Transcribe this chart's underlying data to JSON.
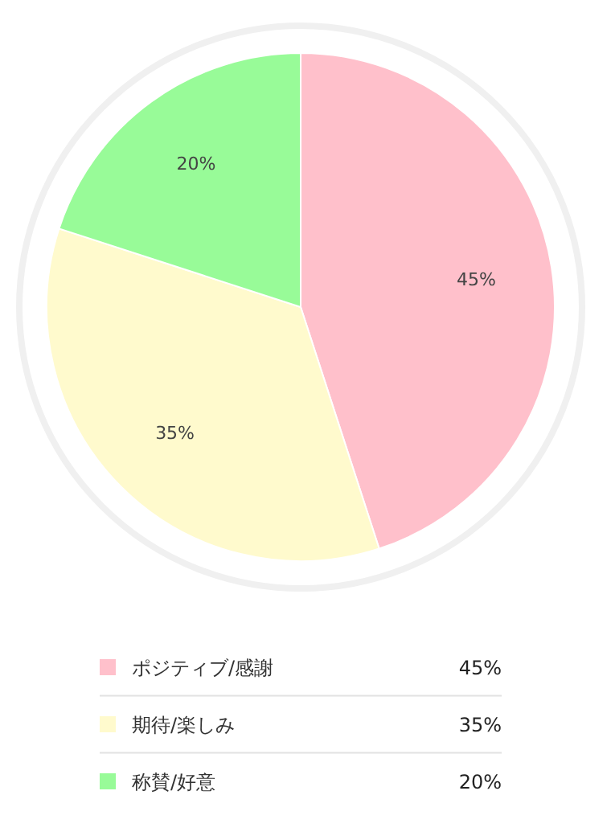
{
  "chart_data": {
    "type": "pie",
    "categories": [
      "ポジティブ/感謝",
      "期待/楽しみ",
      "称賛/好意"
    ],
    "values": [
      45,
      35,
      20
    ],
    "colors": [
      "#ffc0cb",
      "#fffacd",
      "#98fb98"
    ],
    "value_labels": [
      "45%",
      "35%",
      "20%"
    ],
    "legend": "bottom"
  }
}
